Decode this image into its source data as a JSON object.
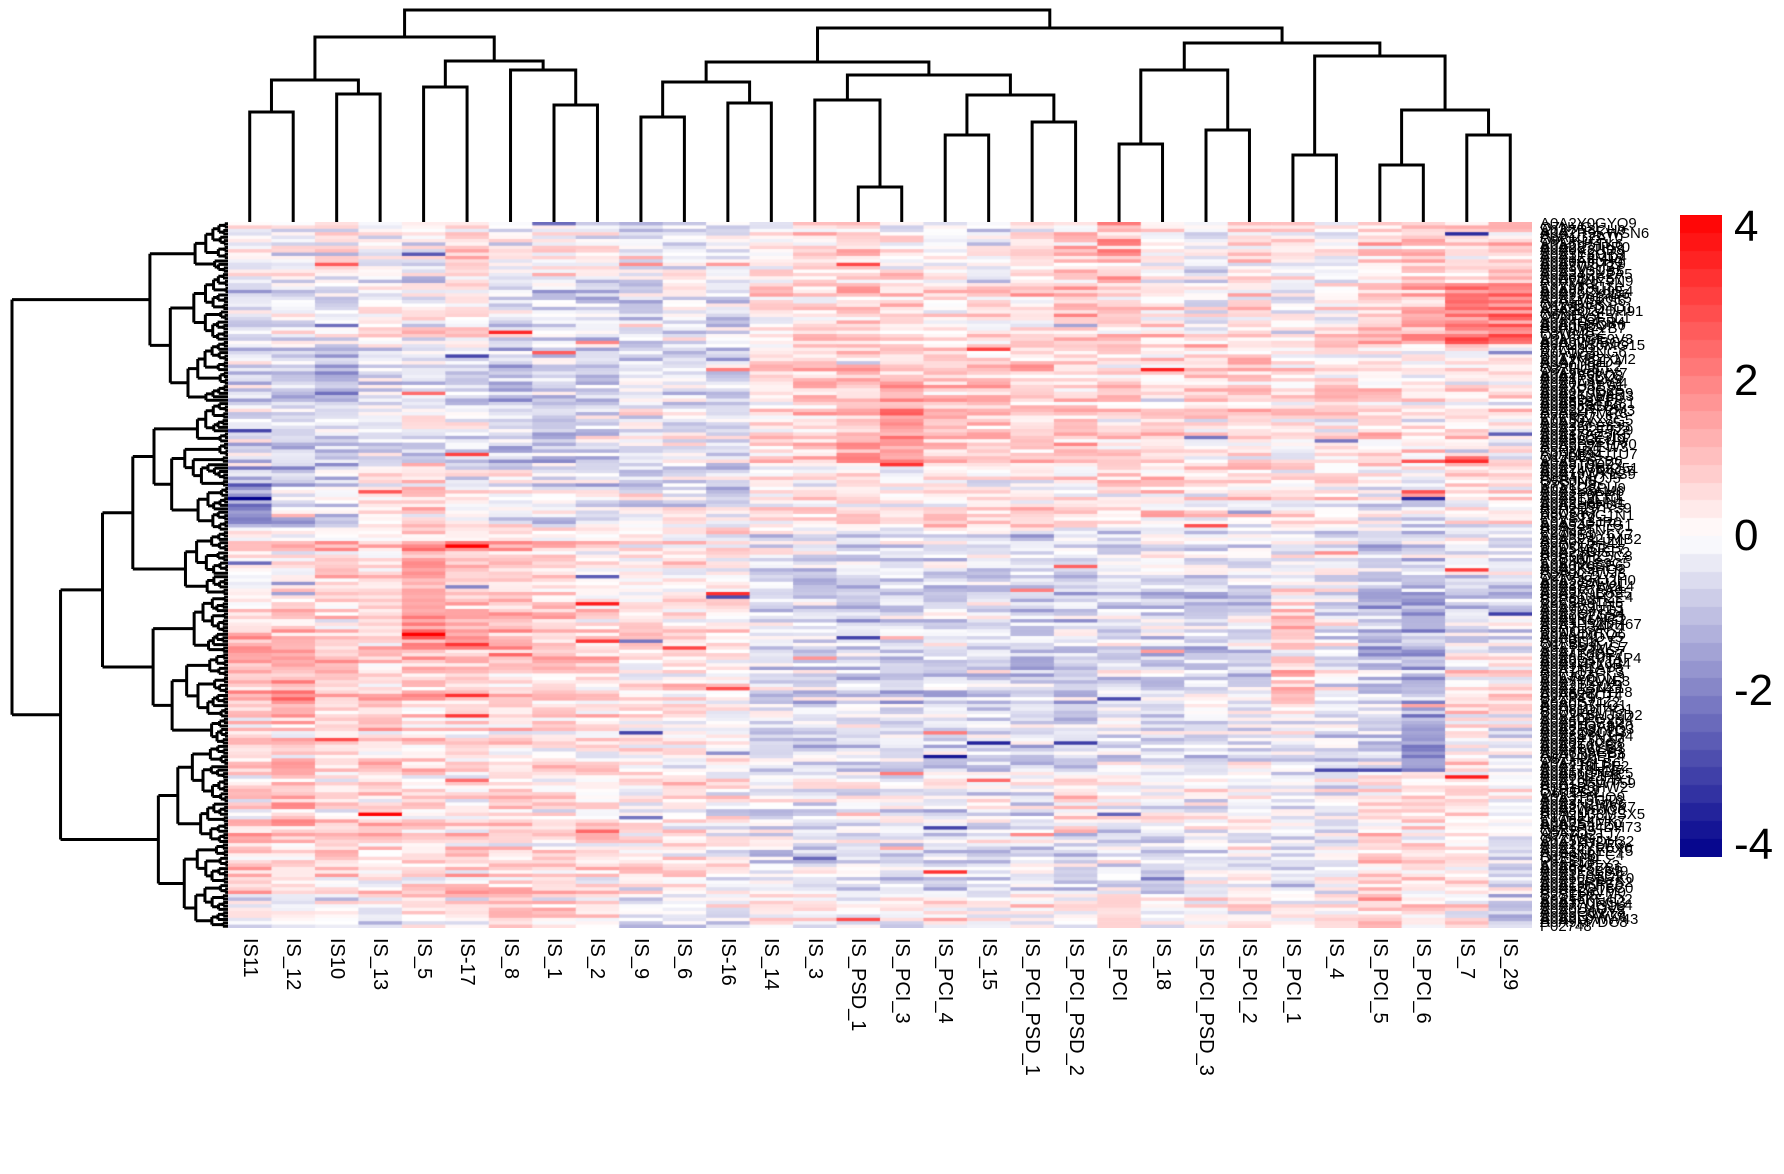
{
  "chart_data": {
    "type": "heatmap",
    "title": "",
    "columns": [
      "IS11",
      "IS_12",
      "IS10",
      "IS_13",
      "IS_5",
      "IS-17",
      "IS_8",
      "IS_1",
      "IS_2",
      "IS_9",
      "IS_6",
      "IS-16",
      "IS_14",
      "IS_3",
      "IS_PSD_1",
      "IS_PCI_3",
      "IS_PCI_4",
      "IS_15",
      "IS_PCI_PSD_1",
      "IS_PCI_PSD_2",
      "IS_PCI",
      "IS_18",
      "IS_PCI_PSD_3",
      "IS_PCI_2",
      "IS_PCI_1",
      "IS_4",
      "IS_PCI_5",
      "IS_PCI_6",
      "IS_7",
      "IS_29"
    ],
    "n_rows": 208,
    "values_are": "row-scaled z-scores, cells unreadable at this size; reconstructed from 12 visual row-bands x 30 columns of block means plus noise",
    "seed": 42,
    "seed_rows": 7,
    "band_rows": [
      0,
      18,
      36,
      54,
      72,
      90,
      108,
      126,
      144,
      162,
      180,
      198
    ],
    "band_means": [
      [
        -0.3,
        -0.2,
        0.2,
        -0.2,
        -0.4,
        0.5,
        -0.2,
        0.1,
        -0.3,
        -0.5,
        -0.2,
        -0.3,
        0.3,
        0.6,
        0.7,
        0.3,
        0.2,
        -0.2,
        0.5,
        0.8,
        1.2,
        0.2,
        -0.3,
        0.4,
        0.3,
        -0.2,
        0.6,
        0.8,
        0.5,
        0.9
      ],
      [
        -0.5,
        -0.3,
        -0.2,
        0.1,
        0.2,
        0.4,
        -0.3,
        -0.6,
        -0.4,
        -0.8,
        -0.3,
        -0.5,
        0.4,
        0.5,
        0.8,
        0.6,
        0.4,
        0.3,
        0.6,
        0.9,
        0.7,
        0.4,
        0.1,
        0.5,
        0.2,
        0.3,
        1.0,
        1.3,
        2.2,
        2.4
      ],
      [
        -0.4,
        -0.6,
        -0.8,
        -0.4,
        -0.5,
        -0.7,
        -0.9,
        -0.5,
        -0.6,
        -0.3,
        -0.4,
        -0.6,
        0.4,
        0.8,
        1.0,
        1.2,
        0.9,
        0.8,
        0.9,
        0.7,
        0.6,
        0.5,
        0.7,
        0.6,
        0.4,
        0.3,
        0.4,
        0.2,
        0.3,
        0.2
      ],
      [
        -0.6,
        -0.5,
        -0.5,
        -0.3,
        -0.2,
        -0.4,
        -0.7,
        -0.8,
        -0.7,
        -0.2,
        -0.3,
        -0.5,
        0.5,
        0.7,
        1.3,
        1.5,
        1.1,
        0.9,
        0.8,
        0.9,
        0.6,
        0.7,
        0.5,
        0.6,
        0.3,
        0.4,
        0.5,
        0.3,
        0.6,
        0.3
      ],
      [
        -1.6,
        -0.9,
        -0.6,
        0.1,
        0.3,
        -0.2,
        -0.4,
        -0.5,
        -0.6,
        -0.3,
        -0.2,
        -0.4,
        0.2,
        0.4,
        0.6,
        0.5,
        0.6,
        0.4,
        0.4,
        0.5,
        0.3,
        0.4,
        0.2,
        0.3,
        0.2,
        0.1,
        -0.2,
        -0.4,
        0.2,
        0.3
      ],
      [
        0.3,
        0.5,
        0.8,
        0.4,
        1.4,
        1.0,
        0.9,
        0.6,
        0.4,
        0.3,
        0.2,
        0.4,
        -0.3,
        -0.5,
        -0.6,
        -0.4,
        -0.5,
        -0.3,
        -0.6,
        -0.5,
        -0.4,
        -0.3,
        -0.5,
        -0.4,
        -0.3,
        -0.2,
        -0.9,
        -0.7,
        -0.3,
        -0.4
      ],
      [
        0.8,
        0.9,
        0.6,
        0.5,
        1.6,
        1.3,
        1.1,
        0.8,
        0.7,
        0.5,
        0.4,
        0.3,
        -0.5,
        -0.7,
        -0.8,
        -0.6,
        -0.5,
        -0.4,
        -0.8,
        -0.7,
        -0.6,
        -0.5,
        -0.7,
        -0.5,
        0.8,
        -0.3,
        -1.2,
        -1.0,
        -0.5,
        -0.6
      ],
      [
        1.2,
        1.4,
        0.8,
        0.6,
        0.9,
        0.7,
        0.8,
        0.9,
        0.6,
        0.4,
        0.5,
        0.3,
        -0.4,
        -0.6,
        -0.5,
        -0.7,
        -0.6,
        -0.4,
        -0.7,
        -0.8,
        -0.5,
        -0.6,
        -0.6,
        -0.4,
        0.6,
        -0.3,
        -0.8,
        -1.3,
        0.4,
        0.2
      ],
      [
        0.6,
        0.8,
        0.5,
        0.7,
        0.6,
        0.4,
        0.5,
        0.6,
        0.4,
        0.3,
        0.2,
        0.1,
        -0.3,
        -0.4,
        -0.5,
        -0.4,
        -0.3,
        -0.5,
        -0.5,
        -0.6,
        -0.4,
        -0.3,
        -0.4,
        -0.3,
        -0.2,
        -0.4,
        -0.6,
        -1.5,
        0.3,
        -0.2
      ],
      [
        0.4,
        0.9,
        0.3,
        0.5,
        0.4,
        0.2,
        0.5,
        0.3,
        0.2,
        0.4,
        0.3,
        0.2,
        -0.2,
        -0.3,
        -0.2,
        -0.1,
        -0.3,
        -0.2,
        -0.3,
        0.5,
        -0.2,
        -0.1,
        -0.2,
        -0.1,
        -0.3,
        -0.2,
        0.4,
        0.3,
        0.5,
        0.2
      ],
      [
        0.7,
        0.5,
        0.6,
        0.4,
        0.5,
        0.7,
        0.6,
        0.4,
        0.5,
        0.3,
        0.4,
        0.2,
        -0.3,
        -0.4,
        -0.3,
        -0.5,
        -0.4,
        -0.3,
        -0.4,
        -0.5,
        -0.3,
        -0.4,
        -0.3,
        -0.2,
        -0.4,
        -0.3,
        0.8,
        0.6,
        0.4,
        -0.3
      ],
      [
        -0.4,
        -0.3,
        -0.2,
        -0.4,
        0.3,
        0.2,
        0.4,
        0.3,
        0.2,
        -0.2,
        -0.3,
        -0.2,
        0.3,
        0.4,
        0.2,
        0.3,
        0.4,
        0.2,
        0.3,
        0.2,
        0.4,
        0.3,
        0.2,
        0.3,
        0.2,
        0.4,
        0.9,
        0.7,
        0.3,
        -0.8
      ]
    ],
    "column_groups": [
      [
        0,
        8
      ],
      [
        9,
        19
      ],
      [
        20,
        29
      ]
    ],
    "legend": {
      "ticks": [
        "4",
        "2",
        "0",
        "-2",
        "-4"
      ],
      "tick_values": [
        4,
        2,
        0,
        -2,
        -4
      ],
      "max": 4.15,
      "steps": 36
    },
    "palette": {
      "negative": "#00008B",
      "zero": "#FFFFFF",
      "positive": "#FF0000"
    },
    "col_dendrogram": [
      10,
      [
        37,
        [
          80,
          [
            112,
            0,
            1
          ],
          [
            94,
            2,
            3
          ]
        ],
        [
          61,
          [
            87,
            4,
            5
          ],
          [
            70,
            6,
            [
              105,
              7,
              8
            ]
          ]
        ]
      ],
      [
        28,
        [
          62,
          [
            82,
            [
              117,
              9,
              10
            ],
            [
              103,
              11,
              12
            ]
          ],
          [
            75,
            [
              100,
              13,
              [
                187,
                14,
                15
              ]
            ],
            [
              95,
              [
                135,
                16,
                17
              ],
              [
                122,
                18,
                19
              ]
            ]
          ]
        ],
        [
          43,
          [
            70,
            [
              144,
              20,
              21
            ],
            [
              130,
              22,
              23
            ]
          ],
          [
            56,
            [
              155,
              24,
              25
            ],
            [
              110,
              [
                165,
                26,
                27
              ],
              [
                135,
                28,
                29
              ]
            ]
          ]
        ]
      ]
    ],
    "row_labels_visible": [
      [
        0,
        "A0A2Y0GYQ9"
      ],
      [
        3,
        "A0A2R9KWSN6"
      ],
      [
        7,
        "A0A287JPR0"
      ],
      [
        22,
        "A0A2Y9B6K5"
      ],
      [
        26,
        "A0A3Q24DH91"
      ],
      [
        36,
        "A0A2U30MG15"
      ],
      [
        40,
        "A0A2N8ZXM2"
      ],
      [
        50,
        "A0A2Y9D6R9"
      ],
      [
        53,
        "A0A5F84J231"
      ],
      [
        61,
        "A0A2I32TTZ9"
      ],
      [
        65,
        "A0A5F94J1V0"
      ],
      [
        68,
        "A0A5F94J1U7"
      ],
      [
        72,
        "A0A2U3BIQ51"
      ],
      [
        84,
        "A0A2F57RS9"
      ],
      [
        93,
        "A0A5E42JMB2"
      ],
      [
        97,
        "A0A2SBISR2"
      ],
      [
        105,
        "A0A5J94J2H0"
      ],
      [
        109,
        "A0A2Y9B6S5"
      ],
      [
        118,
        "A0A3P54DH67"
      ],
      [
        128,
        "A0A6G10TAP4"
      ],
      [
        145,
        "A0A2K5MJ2D2"
      ],
      [
        149,
        "A0A2R8Y4Q3"
      ],
      [
        160,
        "A0A2J8LPE2"
      ],
      [
        165,
        "A0A1D5WT59"
      ],
      [
        174,
        "A0A2U38MSX5"
      ],
      [
        178,
        "A0A6P34DH73"
      ],
      [
        182,
        "A0A52NDH32"
      ],
      [
        185,
        "A0A2K6YEY5"
      ],
      [
        191,
        "A0A5F8B6J9"
      ],
      [
        205,
        "A0A9L0WW43"
      ],
      [
        207,
        "P02748"
      ]
    ]
  }
}
